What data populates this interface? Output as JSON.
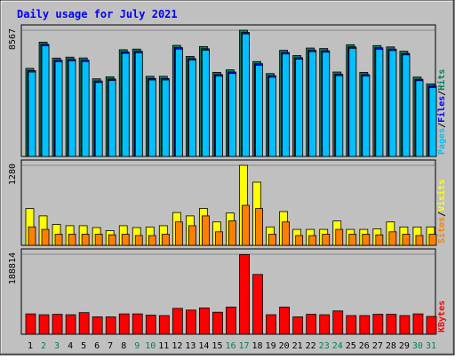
{
  "title": "Daily usage for July 2021",
  "colors": {
    "frame": "#c0c0c0",
    "plot_bg": "#c0c0c0",
    "title": "#0000ff",
    "hits": "#00805c",
    "files": "#0000ff",
    "pages": "#00c0ff",
    "visits": "#ffff00",
    "sites": "#ff8000",
    "kbytes": "#ff0000",
    "weekend_label": "#00805c",
    "weekday_label": "#000000"
  },
  "chart_data": [
    {
      "type": "bar",
      "panel": "top",
      "scale_label": "8567",
      "ylim": [
        0,
        8567
      ],
      "legend": [
        "Pages",
        "Files",
        "Hits"
      ],
      "categories": [
        "1",
        "2",
        "3",
        "4",
        "5",
        "6",
        "7",
        "8",
        "9",
        "10",
        "11",
        "12",
        "13",
        "14",
        "15",
        "16",
        "17",
        "18",
        "19",
        "20",
        "21",
        "22",
        "23",
        "24",
        "25",
        "26",
        "27",
        "28",
        "29",
        "30",
        "31"
      ],
      "series": [
        {
          "name": "Hits",
          "values": [
            5977,
            7758,
            6676,
            6741,
            6687,
            5269,
            5406,
            7246,
            7287,
            5439,
            5439,
            7538,
            6791,
            7461,
            5706,
            5881,
            8567,
            6442,
            5625,
            7205,
            6847,
            7358,
            7325,
            5731,
            7585,
            5706,
            7525,
            7433,
            7141,
            5389,
            4928
          ]
        },
        {
          "name": "Files",
          "values": [
            5827,
            7608,
            6526,
            6591,
            6537,
            5119,
            5256,
            7096,
            7137,
            5289,
            5289,
            7388,
            6641,
            7311,
            5556,
            5731,
            8417,
            6292,
            5475,
            7055,
            6697,
            7208,
            7175,
            5581,
            7435,
            5556,
            7375,
            7283,
            6991,
            5239,
            4778
          ]
        },
        {
          "name": "Pages",
          "values": [
            5727,
            7508,
            6426,
            6491,
            6437,
            5019,
            5156,
            6996,
            7037,
            5189,
            5189,
            7288,
            6541,
            7211,
            5456,
            5631,
            8317,
            6192,
            5375,
            6955,
            6597,
            7108,
            7075,
            5481,
            7335,
            5456,
            7275,
            7183,
            6891,
            5139,
            4678
          ]
        }
      ]
    },
    {
      "type": "bar",
      "panel": "middle",
      "scale_label": "1280",
      "ylim": [
        0,
        1280
      ],
      "legend": [
        "Sites",
        "Visits"
      ],
      "categories": [
        "1",
        "2",
        "3",
        "4",
        "5",
        "6",
        "7",
        "8",
        "9",
        "10",
        "11",
        "12",
        "13",
        "14",
        "15",
        "16",
        "17",
        "18",
        "19",
        "20",
        "21",
        "22",
        "23",
        "24",
        "25",
        "26",
        "27",
        "28",
        "29",
        "30",
        "31"
      ],
      "series": [
        {
          "name": "Visits",
          "values": [
            589,
            471,
            335,
            314,
            314,
            284,
            236,
            314,
            284,
            294,
            314,
            525,
            471,
            590,
            374,
            517,
            1280,
            1010,
            295,
            540,
            255,
            255,
            255,
            390,
            255,
            255,
            264,
            374,
            294,
            294,
            295
          ]
        },
        {
          "name": "Sites",
          "values": [
            295,
            255,
            177,
            177,
            177,
            177,
            168,
            177,
            157,
            157,
            177,
            374,
            314,
            471,
            216,
            393,
            640,
            589,
            177,
            374,
            157,
            157,
            177,
            255,
            177,
            177,
            168,
            216,
            177,
            157,
            177
          ]
        }
      ]
    },
    {
      "type": "bar",
      "panel": "bottom",
      "scale_label": "188814",
      "ylim": [
        0,
        188814
      ],
      "legend": [
        "KBytes"
      ],
      "categories": [
        "1",
        "2",
        "3",
        "4",
        "5",
        "6",
        "7",
        "8",
        "9",
        "10",
        "11",
        "12",
        "13",
        "14",
        "15",
        "16",
        "17",
        "18",
        "19",
        "20",
        "21",
        "22",
        "23",
        "24",
        "25",
        "26",
        "27",
        "28",
        "29",
        "30",
        "31"
      ],
      "series": [
        {
          "name": "KBytes",
          "values": [
            48000,
            46000,
            47000,
            46000,
            51000,
            41000,
            41000,
            48000,
            48000,
            45000,
            44000,
            61000,
            57000,
            62000,
            52000,
            64000,
            188000,
            141000,
            46000,
            64000,
            41000,
            47000,
            46000,
            55000,
            44000,
            44000,
            47000,
            47000,
            44000,
            48000,
            42000
          ]
        }
      ]
    }
  ]
}
